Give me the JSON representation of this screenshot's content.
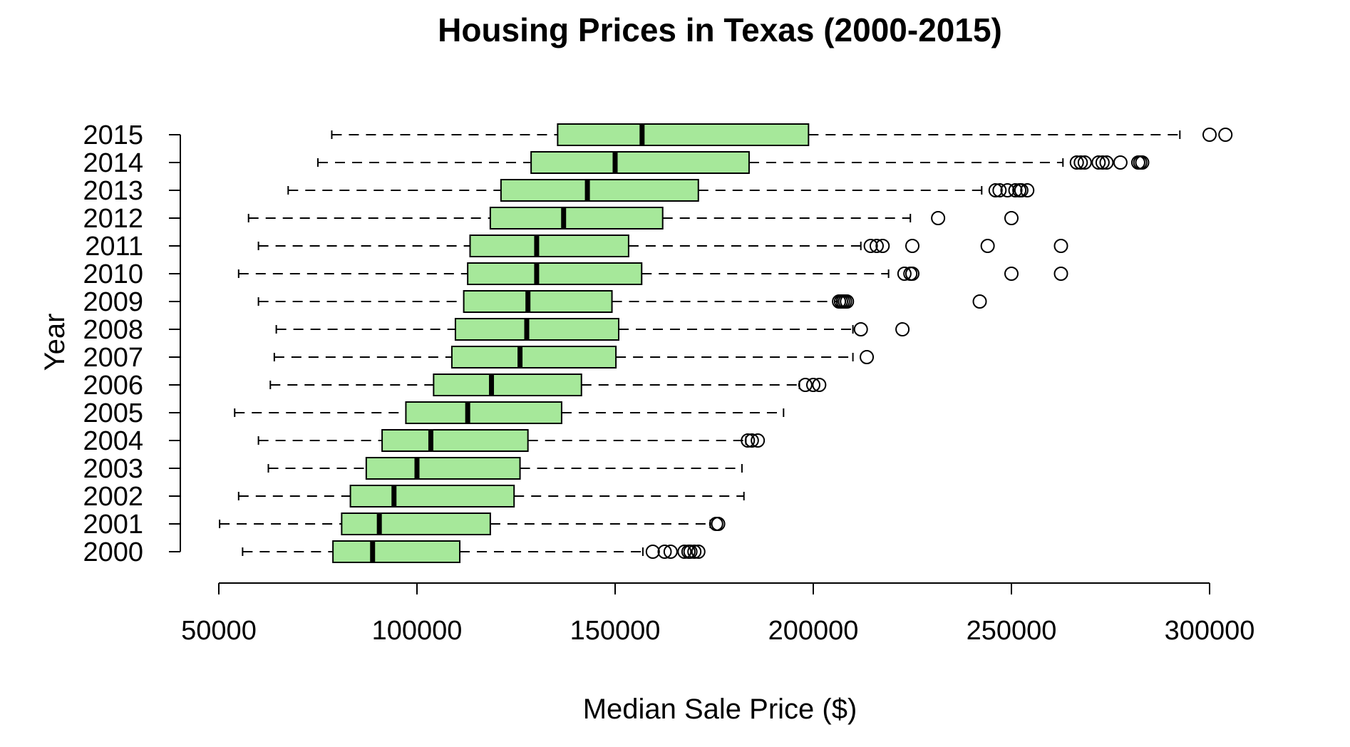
{
  "chart_data": {
    "type": "boxplot",
    "orientation": "horizontal",
    "title": "Housing Prices in Texas (2000-2015)",
    "xlabel": "Median Sale Price ($)",
    "ylabel": "Year",
    "xlim": [
      50000,
      305000
    ],
    "xticks": [
      50000,
      100000,
      150000,
      200000,
      250000,
      300000
    ],
    "xtick_labels": [
      "50000",
      "100000",
      "150000",
      "200000",
      "250000",
      "300000"
    ],
    "grid": false,
    "legend": "none",
    "colors": {
      "box_fill": "#a6e89a",
      "stroke": "#000000"
    },
    "categories": [
      "2000",
      "2001",
      "2002",
      "2003",
      "2004",
      "2005",
      "2006",
      "2007",
      "2008",
      "2009",
      "2010",
      "2011",
      "2012",
      "2013",
      "2014",
      "2015"
    ],
    "boxes": [
      {
        "year": "2000",
        "whisker_low": 56000,
        "q1": 78800,
        "median": 88800,
        "q3": 110800,
        "whisker_high": 157000,
        "outliers": [
          159500,
          162500,
          164000,
          167500,
          168500,
          169000,
          170000,
          171000
        ]
      },
      {
        "year": "2001",
        "whisker_low": 50200,
        "q1": 81000,
        "median": 90500,
        "q3": 118500,
        "whisker_high": 174000,
        "outliers": [
          175500,
          176000
        ]
      },
      {
        "year": "2002",
        "whisker_low": 55000,
        "q1": 83200,
        "median": 94200,
        "q3": 124500,
        "whisker_high": 182500,
        "outliers": []
      },
      {
        "year": "2003",
        "whisker_low": 62500,
        "q1": 87200,
        "median": 100000,
        "q3": 126000,
        "whisker_high": 182000,
        "outliers": []
      },
      {
        "year": "2004",
        "whisker_low": 60000,
        "q1": 91200,
        "median": 103500,
        "q3": 128000,
        "whisker_high": 183000,
        "outliers": [
          183500,
          184500,
          186000
        ]
      },
      {
        "year": "2005",
        "whisker_low": 54000,
        "q1": 97200,
        "median": 112800,
        "q3": 136500,
        "whisker_high": 192500,
        "outliers": []
      },
      {
        "year": "2006",
        "whisker_low": 63000,
        "q1": 104200,
        "median": 118800,
        "q3": 141500,
        "whisker_high": 196500,
        "outliers": [
          198000,
          200000,
          201500
        ]
      },
      {
        "year": "2007",
        "whisker_low": 64000,
        "q1": 108800,
        "median": 126000,
        "q3": 150200,
        "whisker_high": 210000,
        "outliers": [
          213500
        ]
      },
      {
        "year": "2008",
        "whisker_low": 64500,
        "q1": 109700,
        "median": 127700,
        "q3": 150900,
        "whisker_high": 210000,
        "outliers": [
          212000,
          222500
        ]
      },
      {
        "year": "2009",
        "whisker_low": 60000,
        "q1": 111800,
        "median": 128000,
        "q3": 149200,
        "whisker_high": 206000,
        "outliers": [
          206500,
          207000,
          207500,
          208000,
          208500,
          242000
        ]
      },
      {
        "year": "2010",
        "whisker_low": 55000,
        "q1": 112800,
        "median": 130200,
        "q3": 156700,
        "whisker_high": 219000,
        "outliers": [
          223000,
          224500,
          225000,
          250000,
          262500
        ]
      },
      {
        "year": "2011",
        "whisker_low": 60000,
        "q1": 113400,
        "median": 130200,
        "q3": 153400,
        "whisker_high": 212000,
        "outliers": [
          214500,
          216000,
          217500,
          225000,
          244000,
          262500
        ]
      },
      {
        "year": "2012",
        "whisker_low": 57500,
        "q1": 118500,
        "median": 137000,
        "q3": 162000,
        "whisker_high": 224500,
        "outliers": [
          231500,
          250000
        ]
      },
      {
        "year": "2013",
        "whisker_low": 67500,
        "q1": 121200,
        "median": 143000,
        "q3": 171000,
        "whisker_high": 242500,
        "outliers": [
          246000,
          247000,
          249000,
          251000,
          252000,
          252500,
          254000
        ]
      },
      {
        "year": "2014",
        "whisker_low": 75000,
        "q1": 128800,
        "median": 150000,
        "q3": 183800,
        "whisker_high": 263000,
        "outliers": [
          266500,
          267500,
          268500,
          272000,
          273000,
          274000,
          277500,
          282000,
          282500,
          283000
        ]
      },
      {
        "year": "2015",
        "whisker_low": 78500,
        "q1": 135500,
        "median": 156800,
        "q3": 198800,
        "whisker_high": 292500,
        "outliers": [
          300000,
          304000
        ]
      }
    ]
  }
}
